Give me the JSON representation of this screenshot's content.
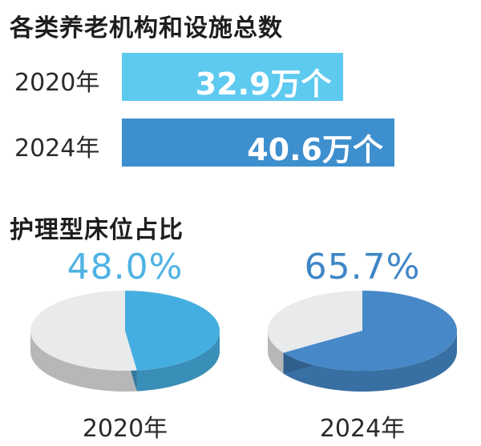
{
  "chart_data": [
    {
      "type": "bar",
      "title": "各类养老机构和设施总数",
      "categories": [
        "2020年",
        "2024年"
      ],
      "values": [
        32.9,
        40.6
      ],
      "value_labels": [
        "32.9万个",
        "40.6万个"
      ],
      "unit": "万个",
      "colors": [
        "#5fcaf0",
        "#3d8fce"
      ],
      "xlim": [
        0,
        50
      ]
    },
    {
      "type": "pie",
      "title": "护理型床位占比",
      "pies": [
        {
          "label": "2020年",
          "value": 48.0,
          "value_label": "48.0%",
          "color": "#45aee0",
          "pct_color": "#4fb3e3"
        },
        {
          "label": "2024年",
          "value": 65.7,
          "value_label": "65.7%",
          "color": "#4688c8",
          "pct_color": "#3f86c6"
        }
      ],
      "rest_color": "#e9eaec"
    }
  ]
}
